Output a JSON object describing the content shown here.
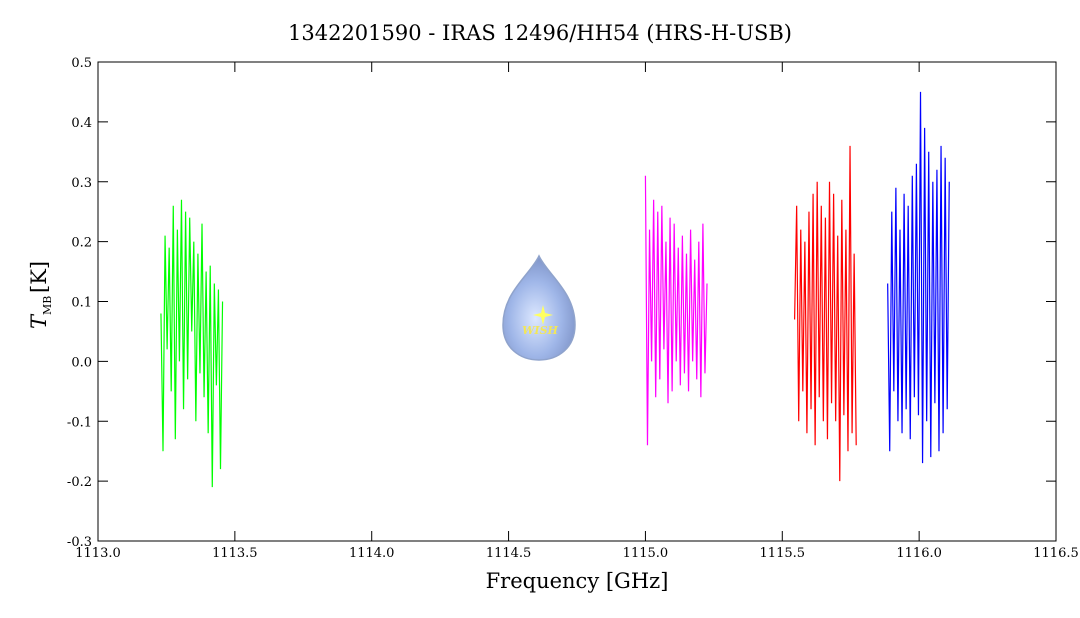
{
  "chart_data": {
    "type": "line",
    "title": "1342201590 - IRAS 12496/HH54 (HRS-H-USB)",
    "x_label": "Frequency [GHz]",
    "y_label": {
      "symbol": "T",
      "subscript": "MB",
      "unit": "[K]"
    },
    "logo_text": "WISH",
    "xlim": [
      1113.0,
      1116.5
    ],
    "xticks": [
      {
        "value": 1113.0,
        "label": "1113.0"
      },
      {
        "value": 1113.5,
        "label": "1113.5"
      },
      {
        "value": 1114.0,
        "label": "1114.0"
      },
      {
        "value": 1114.5,
        "label": "1114.5"
      },
      {
        "value": 1115.0,
        "label": "1115.0"
      },
      {
        "value": 1115.5,
        "label": "1115.5"
      },
      {
        "value": 1116.0,
        "label": "1116.0"
      },
      {
        "value": 1116.5,
        "label": "1116.5"
      }
    ],
    "ylim": [
      -0.3,
      0.5
    ],
    "yticks": [
      -0.3,
      -0.2,
      -0.1,
      {
        "value": 0.0,
        "label": "0.0"
      },
      0.1,
      0.2,
      0.3,
      0.4,
      0.5
    ],
    "series": [
      {
        "color": "#00ff00",
        "x": [
          1113.23,
          1113.2375,
          1113.245,
          1113.2525,
          1113.26,
          1113.2675,
          1113.275,
          1113.2825,
          1113.29,
          1113.2975,
          1113.305,
          1113.3125,
          1113.32,
          1113.3275,
          1113.335,
          1113.3425,
          1113.35,
          1113.3575,
          1113.365,
          1113.3725,
          1113.38,
          1113.3875,
          1113.395,
          1113.4025,
          1113.41,
          1113.4175,
          1113.425,
          1113.4325,
          1113.44,
          1113.4475,
          1113.455
        ],
        "values": [
          0.08,
          -0.15,
          0.21,
          0.02,
          0.19,
          -0.05,
          0.26,
          -0.13,
          0.22,
          0.0,
          0.27,
          -0.08,
          0.25,
          -0.03,
          0.24,
          0.05,
          0.2,
          -0.1,
          0.18,
          -0.02,
          0.23,
          -0.06,
          0.15,
          -0.12,
          0.16,
          -0.21,
          0.13,
          -0.04,
          0.12,
          -0.18,
          0.1
        ]
      },
      {
        "color": "#ff00ff",
        "x": [
          1115.0,
          1115.0075,
          1115.015,
          1115.0225,
          1115.03,
          1115.0375,
          1115.045,
          1115.0525,
          1115.06,
          1115.0675,
          1115.075,
          1115.0825,
          1115.09,
          1115.0975,
          1115.105,
          1115.1125,
          1115.12,
          1115.1275,
          1115.135,
          1115.1425,
          1115.15,
          1115.1575,
          1115.165,
          1115.1725,
          1115.18,
          1115.1875,
          1115.195,
          1115.2025,
          1115.21,
          1115.2175,
          1115.225
        ],
        "values": [
          0.31,
          -0.14,
          0.22,
          0.0,
          0.27,
          -0.06,
          0.25,
          -0.03,
          0.26,
          0.02,
          0.2,
          -0.07,
          0.24,
          -0.05,
          0.23,
          0.0,
          0.19,
          -0.04,
          0.21,
          -0.02,
          0.18,
          -0.05,
          0.22,
          0.0,
          0.17,
          -0.03,
          0.2,
          -0.06,
          0.23,
          -0.02,
          0.13
        ]
      },
      {
        "color": "#ff0000",
        "x": [
          1115.545,
          1115.5525,
          1115.56,
          1115.5675,
          1115.575,
          1115.5825,
          1115.59,
          1115.5975,
          1115.605,
          1115.6125,
          1115.62,
          1115.6275,
          1115.635,
          1115.6425,
          1115.65,
          1115.6575,
          1115.665,
          1115.6725,
          1115.68,
          1115.6875,
          1115.695,
          1115.7025,
          1115.71,
          1115.7175,
          1115.725,
          1115.7325,
          1115.74,
          1115.7475,
          1115.755,
          1115.7625,
          1115.77
        ],
        "values": [
          0.07,
          0.26,
          -0.1,
          0.22,
          -0.05,
          0.2,
          -0.12,
          0.25,
          -0.08,
          0.28,
          -0.14,
          0.3,
          -0.06,
          0.26,
          -0.1,
          0.24,
          -0.13,
          0.3,
          -0.07,
          0.28,
          -0.1,
          0.21,
          -0.2,
          0.27,
          -0.09,
          0.22,
          -0.15,
          0.36,
          -0.12,
          0.18,
          -0.14
        ]
      },
      {
        "color": "#0000ff",
        "x": [
          1115.885,
          1115.8925,
          1115.9,
          1115.9075,
          1115.915,
          1115.9225,
          1115.93,
          1115.9375,
          1115.945,
          1115.9525,
          1115.96,
          1115.9675,
          1115.975,
          1115.9825,
          1115.99,
          1115.9975,
          1116.005,
          1116.0125,
          1116.02,
          1116.0275,
          1116.035,
          1116.0425,
          1116.05,
          1116.0575,
          1116.065,
          1116.0725,
          1116.08,
          1116.0875,
          1116.095,
          1116.1025,
          1116.11
        ],
        "values": [
          0.13,
          -0.15,
          0.25,
          -0.05,
          0.29,
          -0.1,
          0.22,
          -0.12,
          0.28,
          -0.08,
          0.26,
          -0.13,
          0.31,
          -0.06,
          0.33,
          -0.09,
          0.45,
          -0.17,
          0.39,
          -0.1,
          0.35,
          -0.16,
          0.3,
          -0.07,
          0.32,
          -0.15,
          0.36,
          -0.12,
          0.34,
          -0.08,
          0.3
        ]
      }
    ]
  }
}
